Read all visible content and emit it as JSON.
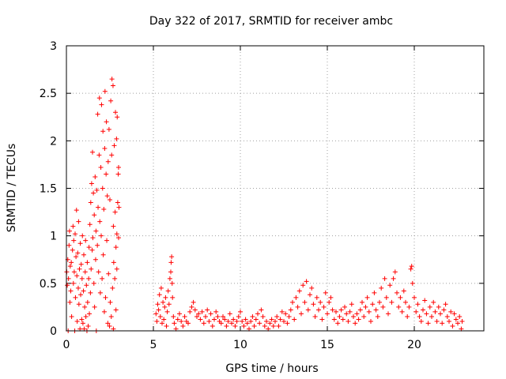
{
  "chart_data": {
    "type": "scatter",
    "title": "Day 322 of 2017, SRMTID for receiver ambc",
    "xlabel": "GPS time / hours",
    "ylabel": "SRMTID / TECUs",
    "xlim": [
      0,
      24
    ],
    "ylim": [
      0,
      3
    ],
    "xticks": [
      0,
      5,
      10,
      15,
      20
    ],
    "yticks": [
      0,
      0.5,
      1,
      1.5,
      2,
      2.5,
      3
    ],
    "grid": true,
    "marker": "+",
    "series": [
      {
        "name": "SRMTID",
        "color": "#ff0000",
        "points": [
          [
            0.02,
            0.62
          ],
          [
            0.05,
            0.48
          ],
          [
            0.08,
            0.75
          ],
          [
            0.1,
            0.0
          ],
          [
            0.12,
            0.55
          ],
          [
            0.15,
            0.9
          ],
          [
            0.18,
            1.05
          ],
          [
            0.2,
            0.3
          ],
          [
            0.22,
            0.68
          ],
          [
            0.25,
            0.42
          ],
          [
            0.28,
            0.72
          ],
          [
            0.3,
            0.15
          ],
          [
            0.35,
            0.85
          ],
          [
            0.38,
            1.1
          ],
          [
            0.4,
            0.5
          ],
          [
            0.42,
            0.95
          ],
          [
            0.45,
            0.62
          ],
          [
            0.48,
            0.0
          ],
          [
            0.5,
            1.02
          ],
          [
            0.52,
            0.35
          ],
          [
            0.55,
            0.78
          ],
          [
            0.58,
            1.27
          ],
          [
            0.6,
            0.58
          ],
          [
            0.62,
            0.1
          ],
          [
            0.65,
            0.82
          ],
          [
            0.68,
            0.45
          ],
          [
            0.7,
            1.15
          ],
          [
            0.72,
            0.28
          ],
          [
            0.75,
            0.65
          ],
          [
            0.78,
            0.02
          ],
          [
            0.8,
            0.92
          ],
          [
            0.82,
            0.38
          ],
          [
            0.85,
            0.7
          ],
          [
            0.88,
            0.12
          ],
          [
            0.9,
            0.55
          ],
          [
            0.92,
            1.0
          ],
          [
            0.95,
            0.08
          ],
          [
            0.98,
            0.42
          ],
          [
            1.0,
            0.8
          ],
          [
            1.02,
            0.02
          ],
          [
            1.05,
            0.25
          ],
          [
            1.08,
            0.62
          ],
          [
            1.1,
            0.95
          ],
          [
            1.12,
            0.15
          ],
          [
            1.15,
            0.48
          ],
          [
            1.18,
            0.0
          ],
          [
            1.2,
            0.72
          ],
          [
            1.22,
            0.3
          ],
          [
            1.25,
            0.05
          ],
          [
            1.28,
            0.55
          ],
          [
            1.3,
            0.88
          ],
          [
            1.32,
            0.18
          ],
          [
            1.35,
            1.12
          ],
          [
            1.38,
            0.4
          ],
          [
            1.4,
            1.35
          ],
          [
            1.42,
            0.65
          ],
          [
            1.45,
            1.55
          ],
          [
            1.48,
            0.85
          ],
          [
            1.5,
            1.88
          ],
          [
            1.52,
            0.98
          ],
          [
            1.55,
            1.45
          ],
          [
            1.58,
            0.5
          ],
          [
            1.6,
            1.22
          ],
          [
            1.62,
            0.25
          ],
          [
            1.65,
            1.62
          ],
          [
            1.68,
            0.75
          ],
          [
            1.7,
            1.05
          ],
          [
            1.72,
            0.0
          ],
          [
            1.75,
            1.48
          ],
          [
            1.78,
            0.9
          ],
          [
            1.8,
            2.28
          ],
          [
            1.82,
            1.3
          ],
          [
            1.85,
            0.62
          ],
          [
            1.88,
            1.85
          ],
          [
            1.9,
            2.45
          ],
          [
            1.92,
            1.15
          ],
          [
            1.95,
            0.4
          ],
          [
            1.98,
            1.72
          ],
          [
            2.0,
            1.0
          ],
          [
            2.02,
            2.38
          ],
          [
            2.05,
            0.55
          ],
          [
            2.08,
            1.5
          ],
          [
            2.1,
            2.1
          ],
          [
            2.12,
            0.8
          ],
          [
            2.15,
            1.28
          ],
          [
            2.18,
            0.2
          ],
          [
            2.2,
            1.92
          ],
          [
            2.22,
            2.52
          ],
          [
            2.25,
            0.35
          ],
          [
            2.28,
            1.65
          ],
          [
            2.3,
            2.2
          ],
          [
            2.32,
            0.95
          ],
          [
            2.35,
            1.42
          ],
          [
            2.38,
            0.08
          ],
          [
            2.4,
            1.78
          ],
          [
            2.42,
            0.6
          ],
          [
            2.45,
            2.12
          ],
          [
            2.48,
            0.05
          ],
          [
            2.5,
            1.38
          ],
          [
            2.52,
            0.3
          ],
          [
            2.55,
            2.42
          ],
          [
            2.58,
            0.15
          ],
          [
            2.6,
            1.85
          ],
          [
            2.62,
            2.65
          ],
          [
            2.65,
            0.45
          ],
          [
            2.68,
            2.58
          ],
          [
            2.7,
            1.1
          ],
          [
            2.72,
            0.72
          ],
          [
            2.75,
            1.95
          ],
          [
            2.78,
            0.55
          ],
          [
            2.8,
            1.25
          ],
          [
            2.82,
            2.3
          ],
          [
            2.85,
            0.88
          ],
          [
            2.88,
            2.02
          ],
          [
            2.9,
            1.02
          ],
          [
            2.92,
            2.25
          ],
          [
            2.95,
            1.35
          ],
          [
            2.98,
            1.65
          ],
          [
            3.0,
            1.72
          ],
          [
            3.02,
            1.3
          ],
          [
            3.0,
            0.98
          ],
          [
            2.9,
            0.65
          ],
          [
            2.85,
            0.22
          ],
          [
            2.7,
            0.02
          ],
          [
            5.15,
            0.18
          ],
          [
            5.2,
            0.1
          ],
          [
            5.25,
            0.28
          ],
          [
            5.3,
            0.22
          ],
          [
            5.35,
            0.38
          ],
          [
            5.4,
            0.15
          ],
          [
            5.45,
            0.45
          ],
          [
            5.5,
            0.08
          ],
          [
            5.55,
            0.3
          ],
          [
            5.6,
            0.12
          ],
          [
            5.65,
            0.25
          ],
          [
            5.7,
            0.35
          ],
          [
            5.75,
            0.05
          ],
          [
            5.8,
            0.2
          ],
          [
            5.85,
            0.42
          ],
          [
            5.9,
            0.28
          ],
          [
            5.95,
            0.55
          ],
          [
            6.0,
            0.62
          ],
          [
            6.02,
            0.72
          ],
          [
            6.05,
            0.78
          ],
          [
            6.08,
            0.5
          ],
          [
            6.1,
            0.35
          ],
          [
            6.15,
            0.15
          ],
          [
            6.2,
            0.08
          ],
          [
            6.3,
            0.02
          ],
          [
            6.4,
            0.12
          ],
          [
            6.5,
            0.18
          ],
          [
            6.6,
            0.1
          ],
          [
            6.7,
            0.05
          ],
          [
            6.8,
            0.15
          ],
          [
            6.9,
            0.1
          ],
          [
            7.0,
            0.08
          ],
          [
            7.1,
            0.2
          ],
          [
            7.2,
            0.25
          ],
          [
            7.3,
            0.3
          ],
          [
            7.4,
            0.22
          ],
          [
            7.5,
            0.15
          ],
          [
            7.6,
            0.18
          ],
          [
            7.7,
            0.12
          ],
          [
            7.8,
            0.2
          ],
          [
            7.9,
            0.08
          ],
          [
            8.0,
            0.15
          ],
          [
            8.1,
            0.22
          ],
          [
            8.2,
            0.1
          ],
          [
            8.3,
            0.18
          ],
          [
            8.4,
            0.05
          ],
          [
            8.5,
            0.12
          ],
          [
            8.6,
            0.2
          ],
          [
            8.7,
            0.15
          ],
          [
            8.8,
            0.1
          ],
          [
            8.9,
            0.08
          ],
          [
            9.0,
            0.15
          ],
          [
            9.1,
            0.12
          ],
          [
            9.2,
            0.05
          ],
          [
            9.3,
            0.1
          ],
          [
            9.4,
            0.18
          ],
          [
            9.5,
            0.08
          ],
          [
            9.6,
            0.12
          ],
          [
            9.7,
            0.05
          ],
          [
            9.8,
            0.1
          ],
          [
            9.9,
            0.15
          ],
          [
            10.0,
            0.2
          ],
          [
            10.1,
            0.1
          ],
          [
            10.2,
            0.05
          ],
          [
            10.3,
            0.12
          ],
          [
            10.4,
            0.08
          ],
          [
            10.5,
            0.02
          ],
          [
            10.6,
            0.1
          ],
          [
            10.7,
            0.15
          ],
          [
            10.8,
            0.05
          ],
          [
            10.9,
            0.12
          ],
          [
            11.0,
            0.18
          ],
          [
            11.1,
            0.08
          ],
          [
            11.2,
            0.22
          ],
          [
            11.3,
            0.15
          ],
          [
            11.4,
            0.05
          ],
          [
            11.5,
            0.1
          ],
          [
            11.6,
            0.02
          ],
          [
            11.7,
            0.08
          ],
          [
            11.8,
            0.12
          ],
          [
            11.9,
            0.05
          ],
          [
            12.0,
            0.1
          ],
          [
            12.1,
            0.15
          ],
          [
            12.2,
            0.05
          ],
          [
            12.3,
            0.12
          ],
          [
            12.4,
            0.2
          ],
          [
            12.5,
            0.1
          ],
          [
            12.6,
            0.18
          ],
          [
            12.7,
            0.08
          ],
          [
            12.8,
            0.15
          ],
          [
            12.9,
            0.22
          ],
          [
            13.0,
            0.3
          ],
          [
            13.1,
            0.12
          ],
          [
            13.2,
            0.35
          ],
          [
            13.3,
            0.25
          ],
          [
            13.4,
            0.42
          ],
          [
            13.5,
            0.18
          ],
          [
            13.6,
            0.48
          ],
          [
            13.7,
            0.3
          ],
          [
            13.8,
            0.52
          ],
          [
            13.9,
            0.22
          ],
          [
            14.0,
            0.38
          ],
          [
            14.1,
            0.45
          ],
          [
            14.2,
            0.28
          ],
          [
            14.3,
            0.15
          ],
          [
            14.4,
            0.35
          ],
          [
            14.5,
            0.22
          ],
          [
            14.6,
            0.3
          ],
          [
            14.7,
            0.12
          ],
          [
            14.8,
            0.25
          ],
          [
            14.9,
            0.4
          ],
          [
            15.0,
            0.18
          ],
          [
            15.1,
            0.3
          ],
          [
            15.2,
            0.35
          ],
          [
            15.3,
            0.22
          ],
          [
            15.4,
            0.12
          ],
          [
            15.5,
            0.2
          ],
          [
            15.6,
            0.08
          ],
          [
            15.7,
            0.15
          ],
          [
            15.8,
            0.22
          ],
          [
            15.9,
            0.12
          ],
          [
            16.0,
            0.25
          ],
          [
            16.1,
            0.18
          ],
          [
            16.2,
            0.1
          ],
          [
            16.3,
            0.2
          ],
          [
            16.4,
            0.28
          ],
          [
            16.5,
            0.15
          ],
          [
            16.6,
            0.08
          ],
          [
            16.7,
            0.18
          ],
          [
            16.8,
            0.12
          ],
          [
            16.9,
            0.22
          ],
          [
            17.0,
            0.3
          ],
          [
            17.1,
            0.15
          ],
          [
            17.2,
            0.25
          ],
          [
            17.3,
            0.35
          ],
          [
            17.4,
            0.2
          ],
          [
            17.5,
            0.1
          ],
          [
            17.6,
            0.28
          ],
          [
            17.7,
            0.4
          ],
          [
            17.8,
            0.22
          ],
          [
            17.9,
            0.15
          ],
          [
            18.0,
            0.3
          ],
          [
            18.1,
            0.45
          ],
          [
            18.2,
            0.25
          ],
          [
            18.3,
            0.55
          ],
          [
            18.4,
            0.35
          ],
          [
            18.5,
            0.18
          ],
          [
            18.6,
            0.48
          ],
          [
            18.7,
            0.3
          ],
          [
            18.8,
            0.55
          ],
          [
            18.9,
            0.62
          ],
          [
            19.0,
            0.4
          ],
          [
            19.1,
            0.25
          ],
          [
            19.2,
            0.35
          ],
          [
            19.3,
            0.2
          ],
          [
            19.4,
            0.42
          ],
          [
            19.5,
            0.3
          ],
          [
            19.6,
            0.15
          ],
          [
            19.7,
            0.25
          ],
          [
            19.8,
            0.65
          ],
          [
            19.85,
            0.68
          ],
          [
            19.9,
            0.5
          ],
          [
            20.0,
            0.35
          ],
          [
            20.1,
            0.2
          ],
          [
            20.2,
            0.28
          ],
          [
            20.3,
            0.15
          ],
          [
            20.4,
            0.1
          ],
          [
            20.5,
            0.22
          ],
          [
            20.6,
            0.32
          ],
          [
            20.7,
            0.18
          ],
          [
            20.8,
            0.08
          ],
          [
            20.9,
            0.25
          ],
          [
            21.0,
            0.15
          ],
          [
            21.1,
            0.3
          ],
          [
            21.2,
            0.2
          ],
          [
            21.3,
            0.1
          ],
          [
            21.4,
            0.25
          ],
          [
            21.5,
            0.18
          ],
          [
            21.6,
            0.08
          ],
          [
            21.7,
            0.22
          ],
          [
            21.8,
            0.28
          ],
          [
            21.9,
            0.15
          ],
          [
            22.0,
            0.1
          ],
          [
            22.1,
            0.2
          ],
          [
            22.2,
            0.05
          ],
          [
            22.3,
            0.18
          ],
          [
            22.4,
            0.12
          ],
          [
            22.5,
            0.08
          ],
          [
            22.6,
            0.15
          ],
          [
            22.7,
            0.02
          ],
          [
            22.75,
            0.1
          ]
        ]
      }
    ]
  }
}
